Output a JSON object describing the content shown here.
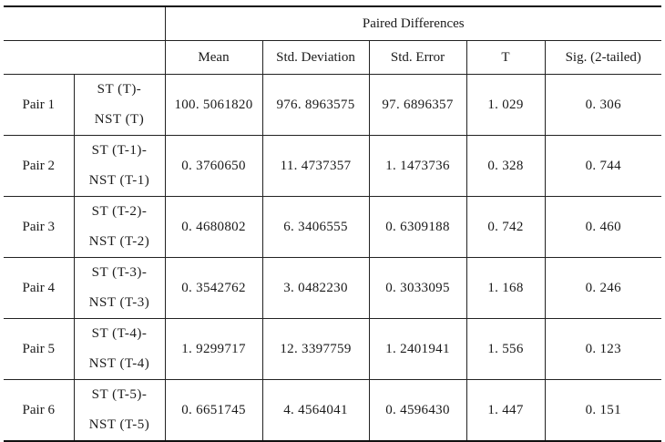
{
  "table": {
    "group_header": "Paired Differences",
    "columns": [
      "Mean",
      "Std. Deviation",
      "Std. Error",
      "T",
      "Sig. (2-tailed)"
    ],
    "rows": [
      {
        "pair": "Pair 1",
        "cmp1": "ST (T)-",
        "cmp2": "NST (T)",
        "values": [
          "100. 5061820",
          "976. 8963575",
          "97. 6896357",
          "1. 029",
          "0. 306"
        ]
      },
      {
        "pair": "Pair 2",
        "cmp1": "ST (T-1)-",
        "cmp2": "NST (T-1)",
        "values": [
          "0. 3760650",
          "11. 4737357",
          "1. 1473736",
          "0. 328",
          "0. 744"
        ]
      },
      {
        "pair": "Pair 3",
        "cmp1": "ST (T-2)-",
        "cmp2": "NST (T-2)",
        "values": [
          "0. 4680802",
          "6. 3406555",
          "0. 6309188",
          "0. 742",
          "0. 460"
        ]
      },
      {
        "pair": "Pair 4",
        "cmp1": "ST (T-3)-",
        "cmp2": "NST (T-3)",
        "values": [
          "0. 3542762",
          "3. 0482230",
          "0. 3033095",
          "1. 168",
          "0. 246"
        ]
      },
      {
        "pair": "Pair 5",
        "cmp1": "ST (T-4)-",
        "cmp2": "NST (T-4)",
        "values": [
          "1. 9299717",
          "12. 3397759",
          "1. 2401941",
          "1. 556",
          "0. 123"
        ]
      },
      {
        "pair": "Pair 6",
        "cmp1": "ST (T-5)-",
        "cmp2": "NST (T-5)",
        "values": [
          "0. 6651745",
          "4. 4564041",
          "0. 4596430",
          "1. 447",
          "0. 151"
        ]
      }
    ]
  }
}
